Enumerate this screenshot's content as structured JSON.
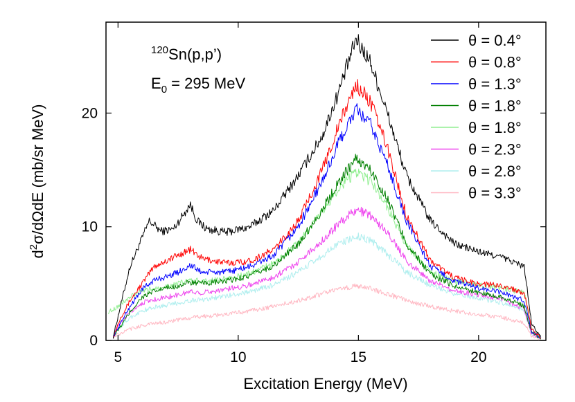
{
  "chart_data": {
    "type": "line",
    "xlabel": "Excitation Energy (MeV)",
    "ylabel": {
      "pre": "d",
      "sup": "2",
      "post": "σ/dΩdE (mb/sr MeV)"
    },
    "annotation": {
      "reaction": {
        "sup": "120",
        "text": "Sn(p,p’)"
      },
      "energy": {
        "pre": "E",
        "sub": "0",
        "post": " = 295 MeV"
      }
    },
    "xlim": [
      4.5,
      22.8
    ],
    "ylim": [
      0,
      28
    ],
    "xticks": [
      5,
      10,
      15,
      20
    ],
    "yticks": [
      0,
      10,
      20
    ],
    "xtick_labels": [
      "5",
      "10",
      "15",
      "20"
    ],
    "ytick_labels": [
      "0",
      "10",
      "20"
    ],
    "grid": false,
    "legend_position": "top-right",
    "series": [
      {
        "name": "θ = 0.4°",
        "color": "#000000",
        "points": [
          [
            4.8,
            0.3
          ],
          [
            5.1,
            3
          ],
          [
            5.5,
            6.5
          ],
          [
            6.0,
            9
          ],
          [
            6.3,
            10.5
          ],
          [
            6.8,
            9.6
          ],
          [
            7.3,
            9.8
          ],
          [
            7.7,
            11
          ],
          [
            8.0,
            12
          ],
          [
            8.3,
            10.5
          ],
          [
            8.7,
            9.8
          ],
          [
            9.5,
            9.5
          ],
          [
            10.5,
            10
          ],
          [
            11.5,
            11.5
          ],
          [
            12.5,
            14.5
          ],
          [
            13.5,
            18
          ],
          [
            14.2,
            22
          ],
          [
            14.9,
            26.5
          ],
          [
            15.5,
            24.5
          ],
          [
            16.2,
            20
          ],
          [
            17.0,
            14.5
          ],
          [
            18.0,
            10.5
          ],
          [
            19.0,
            8.5
          ],
          [
            20.0,
            7.8
          ],
          [
            21.0,
            7.3
          ],
          [
            21.9,
            6.5
          ],
          [
            22.2,
            1.5
          ],
          [
            22.6,
            0.2
          ]
        ]
      },
      {
        "name": "θ = 0.8°",
        "color": "#ff0000",
        "points": [
          [
            4.8,
            0.3
          ],
          [
            5.1,
            2
          ],
          [
            5.5,
            3.5
          ],
          [
            6.0,
            5
          ],
          [
            6.5,
            6.5
          ],
          [
            7.0,
            7
          ],
          [
            7.5,
            7.5
          ],
          [
            8.0,
            8
          ],
          [
            8.5,
            7.2
          ],
          [
            9.5,
            6.8
          ],
          [
            10.5,
            7
          ],
          [
            11.5,
            8
          ],
          [
            12.5,
            10.5
          ],
          [
            13.5,
            15
          ],
          [
            14.2,
            19
          ],
          [
            14.9,
            22.5
          ],
          [
            15.5,
            21
          ],
          [
            16.2,
            17
          ],
          [
            17.0,
            11
          ],
          [
            18.0,
            7
          ],
          [
            19.0,
            5.5
          ],
          [
            20.0,
            5
          ],
          [
            21.0,
            4.8
          ],
          [
            21.9,
            4.2
          ],
          [
            22.2,
            1
          ],
          [
            22.6,
            0.2
          ]
        ]
      },
      {
        "name": "θ = 1.3°",
        "color": "#0000ff",
        "points": [
          [
            4.8,
            0.3
          ],
          [
            5.1,
            1.5
          ],
          [
            5.5,
            3
          ],
          [
            6.0,
            4.5
          ],
          [
            6.5,
            5.3
          ],
          [
            7.0,
            5.6
          ],
          [
            7.5,
            6
          ],
          [
            8.0,
            6.6
          ],
          [
            8.5,
            6
          ],
          [
            9.5,
            6
          ],
          [
            10.5,
            6.5
          ],
          [
            11.5,
            7.5
          ],
          [
            12.5,
            10
          ],
          [
            13.5,
            14
          ],
          [
            14.2,
            17.5
          ],
          [
            14.9,
            20.3
          ],
          [
            15.5,
            19
          ],
          [
            16.2,
            15.5
          ],
          [
            17.0,
            10.5
          ],
          [
            18.0,
            6.5
          ],
          [
            19.0,
            5.2
          ],
          [
            20.0,
            4.6
          ],
          [
            21.0,
            4.2
          ],
          [
            21.9,
            3.5
          ],
          [
            22.2,
            0.8
          ],
          [
            22.6,
            0.2
          ]
        ]
      },
      {
        "name": "θ = 1.8°",
        "color": "#008000",
        "points": [
          [
            4.8,
            0.3
          ],
          [
            5.1,
            1.2
          ],
          [
            5.5,
            2.5
          ],
          [
            6.0,
            3.8
          ],
          [
            6.5,
            4.3
          ],
          [
            7.0,
            4.6
          ],
          [
            7.5,
            4.8
          ],
          [
            8.0,
            5.1
          ],
          [
            8.5,
            5
          ],
          [
            9.5,
            5.2
          ],
          [
            10.5,
            5.7
          ],
          [
            11.5,
            6.6
          ],
          [
            12.5,
            8.5
          ],
          [
            13.5,
            11.5
          ],
          [
            14.2,
            14
          ],
          [
            14.9,
            16
          ],
          [
            15.5,
            15
          ],
          [
            16.2,
            12.5
          ],
          [
            17.0,
            8.5
          ],
          [
            18.0,
            5.8
          ],
          [
            19.0,
            4.8
          ],
          [
            20.0,
            4.2
          ],
          [
            21.0,
            3.8
          ],
          [
            21.9,
            3
          ],
          [
            22.2,
            0.7
          ],
          [
            22.6,
            0.2
          ]
        ]
      },
      {
        "name": "θ = 1.8°",
        "color": "#90ee90",
        "points": [
          [
            4.6,
            2.5
          ],
          [
            5.0,
            3
          ],
          [
            5.5,
            3.8
          ],
          [
            6.0,
            4.3
          ],
          [
            6.5,
            4.6
          ],
          [
            7.0,
            4.8
          ],
          [
            7.5,
            5
          ],
          [
            8.0,
            5.3
          ],
          [
            8.5,
            5.2
          ],
          [
            9.5,
            5.4
          ],
          [
            10.5,
            5.9
          ],
          [
            11.5,
            6.8
          ],
          [
            12.5,
            8.6
          ],
          [
            13.5,
            11.3
          ],
          [
            14.2,
            13.5
          ],
          [
            14.9,
            14.8
          ],
          [
            15.5,
            14
          ],
          [
            16.2,
            11.8
          ],
          [
            17.0,
            8.3
          ],
          [
            18.0,
            6
          ],
          [
            19.0,
            5.2
          ],
          [
            20.0,
            4.9
          ],
          [
            21.0,
            4.6
          ],
          [
            21.9,
            4.2
          ],
          [
            22.2,
            1
          ],
          [
            22.6,
            0.2
          ]
        ]
      },
      {
        "name": "θ = 2.3°",
        "color": "#ee44ee",
        "points": [
          [
            4.8,
            0.5
          ],
          [
            5.1,
            1.5
          ],
          [
            5.5,
            2.5
          ],
          [
            6.0,
            3.3
          ],
          [
            6.5,
            3.6
          ],
          [
            7.0,
            3.8
          ],
          [
            7.5,
            4
          ],
          [
            8.0,
            4.3
          ],
          [
            8.5,
            4.2
          ],
          [
            9.5,
            4.5
          ],
          [
            10.5,
            4.9
          ],
          [
            11.5,
            5.6
          ],
          [
            12.5,
            6.9
          ],
          [
            13.5,
            8.8
          ],
          [
            14.2,
            10.3
          ],
          [
            14.9,
            11.5
          ],
          [
            15.5,
            11
          ],
          [
            16.2,
            9.5
          ],
          [
            17.0,
            7
          ],
          [
            18.0,
            5.2
          ],
          [
            19.0,
            4.4
          ],
          [
            20.0,
            4
          ],
          [
            21.0,
            3.6
          ],
          [
            21.9,
            2.8
          ],
          [
            22.2,
            0.6
          ],
          [
            22.6,
            0.2
          ]
        ]
      },
      {
        "name": "θ = 2.8°",
        "color": "#aeeeee",
        "points": [
          [
            4.8,
            0.5
          ],
          [
            5.1,
            1.2
          ],
          [
            5.5,
            2
          ],
          [
            6.0,
            2.6
          ],
          [
            6.5,
            2.9
          ],
          [
            7.0,
            3.1
          ],
          [
            7.5,
            3.3
          ],
          [
            8.0,
            3.5
          ],
          [
            8.5,
            3.6
          ],
          [
            9.5,
            3.9
          ],
          [
            10.5,
            4.3
          ],
          [
            11.5,
            4.9
          ],
          [
            12.5,
            6
          ],
          [
            13.5,
            7.5
          ],
          [
            14.2,
            8.5
          ],
          [
            14.9,
            9.2
          ],
          [
            15.5,
            8.8
          ],
          [
            16.2,
            7.6
          ],
          [
            17.0,
            6
          ],
          [
            18.0,
            4.8
          ],
          [
            19.0,
            4.1
          ],
          [
            20.0,
            3.7
          ],
          [
            21.0,
            3.3
          ],
          [
            21.9,
            2.6
          ],
          [
            22.2,
            0.6
          ],
          [
            22.6,
            0.2
          ]
        ]
      },
      {
        "name": "θ = 3.3°",
        "color": "#ffb6c1",
        "points": [
          [
            4.8,
            0.3
          ],
          [
            5.1,
            0.6
          ],
          [
            5.5,
            1
          ],
          [
            6.0,
            1.3
          ],
          [
            6.5,
            1.5
          ],
          [
            7.0,
            1.6
          ],
          [
            7.5,
            1.8
          ],
          [
            8.0,
            2
          ],
          [
            8.5,
            2.1
          ],
          [
            9.5,
            2.3
          ],
          [
            10.5,
            2.6
          ],
          [
            11.5,
            3
          ],
          [
            12.5,
            3.5
          ],
          [
            13.5,
            4.1
          ],
          [
            14.2,
            4.5
          ],
          [
            14.9,
            4.8
          ],
          [
            15.5,
            4.6
          ],
          [
            16.2,
            4.1
          ],
          [
            17.0,
            3.5
          ],
          [
            18.0,
            3
          ],
          [
            19.0,
            2.6
          ],
          [
            20.0,
            2.3
          ],
          [
            21.0,
            2
          ],
          [
            21.9,
            1.5
          ],
          [
            22.2,
            0.4
          ],
          [
            22.6,
            0.1
          ]
        ]
      }
    ]
  }
}
